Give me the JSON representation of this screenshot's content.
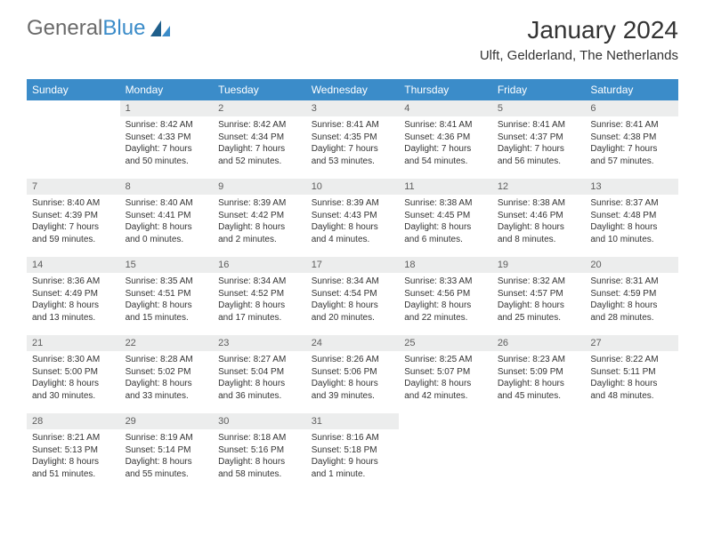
{
  "brand": {
    "part1": "General",
    "part2": "Blue"
  },
  "title": "January 2024",
  "location": "Ulft, Gelderland, The Netherlands",
  "colors": {
    "header_bg": "#3b8cc9",
    "header_text": "#ffffff",
    "daynum_bg": "#eceded",
    "text": "#333333"
  },
  "day_names": [
    "Sunday",
    "Monday",
    "Tuesday",
    "Wednesday",
    "Thursday",
    "Friday",
    "Saturday"
  ],
  "weeks": [
    [
      {
        "n": "",
        "sr": "",
        "ss": "",
        "dl": ""
      },
      {
        "n": "1",
        "sr": "Sunrise: 8:42 AM",
        "ss": "Sunset: 4:33 PM",
        "dl": "Daylight: 7 hours and 50 minutes."
      },
      {
        "n": "2",
        "sr": "Sunrise: 8:42 AM",
        "ss": "Sunset: 4:34 PM",
        "dl": "Daylight: 7 hours and 52 minutes."
      },
      {
        "n": "3",
        "sr": "Sunrise: 8:41 AM",
        "ss": "Sunset: 4:35 PM",
        "dl": "Daylight: 7 hours and 53 minutes."
      },
      {
        "n": "4",
        "sr": "Sunrise: 8:41 AM",
        "ss": "Sunset: 4:36 PM",
        "dl": "Daylight: 7 hours and 54 minutes."
      },
      {
        "n": "5",
        "sr": "Sunrise: 8:41 AM",
        "ss": "Sunset: 4:37 PM",
        "dl": "Daylight: 7 hours and 56 minutes."
      },
      {
        "n": "6",
        "sr": "Sunrise: 8:41 AM",
        "ss": "Sunset: 4:38 PM",
        "dl": "Daylight: 7 hours and 57 minutes."
      }
    ],
    [
      {
        "n": "7",
        "sr": "Sunrise: 8:40 AM",
        "ss": "Sunset: 4:39 PM",
        "dl": "Daylight: 7 hours and 59 minutes."
      },
      {
        "n": "8",
        "sr": "Sunrise: 8:40 AM",
        "ss": "Sunset: 4:41 PM",
        "dl": "Daylight: 8 hours and 0 minutes."
      },
      {
        "n": "9",
        "sr": "Sunrise: 8:39 AM",
        "ss": "Sunset: 4:42 PM",
        "dl": "Daylight: 8 hours and 2 minutes."
      },
      {
        "n": "10",
        "sr": "Sunrise: 8:39 AM",
        "ss": "Sunset: 4:43 PM",
        "dl": "Daylight: 8 hours and 4 minutes."
      },
      {
        "n": "11",
        "sr": "Sunrise: 8:38 AM",
        "ss": "Sunset: 4:45 PM",
        "dl": "Daylight: 8 hours and 6 minutes."
      },
      {
        "n": "12",
        "sr": "Sunrise: 8:38 AM",
        "ss": "Sunset: 4:46 PM",
        "dl": "Daylight: 8 hours and 8 minutes."
      },
      {
        "n": "13",
        "sr": "Sunrise: 8:37 AM",
        "ss": "Sunset: 4:48 PM",
        "dl": "Daylight: 8 hours and 10 minutes."
      }
    ],
    [
      {
        "n": "14",
        "sr": "Sunrise: 8:36 AM",
        "ss": "Sunset: 4:49 PM",
        "dl": "Daylight: 8 hours and 13 minutes."
      },
      {
        "n": "15",
        "sr": "Sunrise: 8:35 AM",
        "ss": "Sunset: 4:51 PM",
        "dl": "Daylight: 8 hours and 15 minutes."
      },
      {
        "n": "16",
        "sr": "Sunrise: 8:34 AM",
        "ss": "Sunset: 4:52 PM",
        "dl": "Daylight: 8 hours and 17 minutes."
      },
      {
        "n": "17",
        "sr": "Sunrise: 8:34 AM",
        "ss": "Sunset: 4:54 PM",
        "dl": "Daylight: 8 hours and 20 minutes."
      },
      {
        "n": "18",
        "sr": "Sunrise: 8:33 AM",
        "ss": "Sunset: 4:56 PM",
        "dl": "Daylight: 8 hours and 22 minutes."
      },
      {
        "n": "19",
        "sr": "Sunrise: 8:32 AM",
        "ss": "Sunset: 4:57 PM",
        "dl": "Daylight: 8 hours and 25 minutes."
      },
      {
        "n": "20",
        "sr": "Sunrise: 8:31 AM",
        "ss": "Sunset: 4:59 PM",
        "dl": "Daylight: 8 hours and 28 minutes."
      }
    ],
    [
      {
        "n": "21",
        "sr": "Sunrise: 8:30 AM",
        "ss": "Sunset: 5:00 PM",
        "dl": "Daylight: 8 hours and 30 minutes."
      },
      {
        "n": "22",
        "sr": "Sunrise: 8:28 AM",
        "ss": "Sunset: 5:02 PM",
        "dl": "Daylight: 8 hours and 33 minutes."
      },
      {
        "n": "23",
        "sr": "Sunrise: 8:27 AM",
        "ss": "Sunset: 5:04 PM",
        "dl": "Daylight: 8 hours and 36 minutes."
      },
      {
        "n": "24",
        "sr": "Sunrise: 8:26 AM",
        "ss": "Sunset: 5:06 PM",
        "dl": "Daylight: 8 hours and 39 minutes."
      },
      {
        "n": "25",
        "sr": "Sunrise: 8:25 AM",
        "ss": "Sunset: 5:07 PM",
        "dl": "Daylight: 8 hours and 42 minutes."
      },
      {
        "n": "26",
        "sr": "Sunrise: 8:23 AM",
        "ss": "Sunset: 5:09 PM",
        "dl": "Daylight: 8 hours and 45 minutes."
      },
      {
        "n": "27",
        "sr": "Sunrise: 8:22 AM",
        "ss": "Sunset: 5:11 PM",
        "dl": "Daylight: 8 hours and 48 minutes."
      }
    ],
    [
      {
        "n": "28",
        "sr": "Sunrise: 8:21 AM",
        "ss": "Sunset: 5:13 PM",
        "dl": "Daylight: 8 hours and 51 minutes."
      },
      {
        "n": "29",
        "sr": "Sunrise: 8:19 AM",
        "ss": "Sunset: 5:14 PM",
        "dl": "Daylight: 8 hours and 55 minutes."
      },
      {
        "n": "30",
        "sr": "Sunrise: 8:18 AM",
        "ss": "Sunset: 5:16 PM",
        "dl": "Daylight: 8 hours and 58 minutes."
      },
      {
        "n": "31",
        "sr": "Sunrise: 8:16 AM",
        "ss": "Sunset: 5:18 PM",
        "dl": "Daylight: 9 hours and 1 minute."
      },
      {
        "n": "",
        "sr": "",
        "ss": "",
        "dl": ""
      },
      {
        "n": "",
        "sr": "",
        "ss": "",
        "dl": ""
      },
      {
        "n": "",
        "sr": "",
        "ss": "",
        "dl": ""
      }
    ]
  ]
}
